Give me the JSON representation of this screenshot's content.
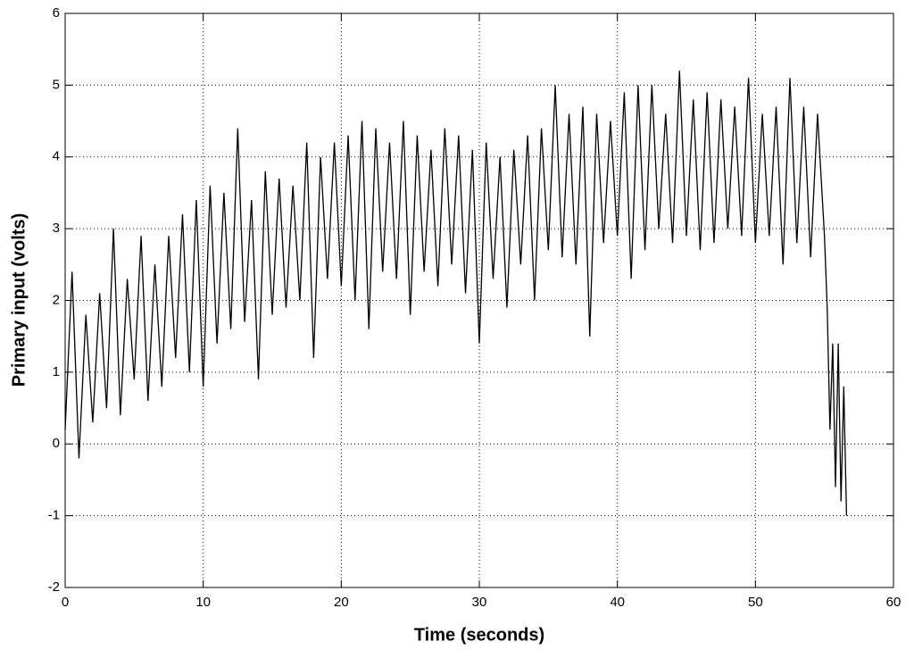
{
  "chart_data": {
    "type": "line",
    "xlabel": "Time (seconds)",
    "ylabel": "Primary input (volts)",
    "xlim": [
      0,
      60
    ],
    "xticks": [
      0,
      10,
      20,
      30,
      40,
      50,
      60
    ],
    "ylim": [
      -2,
      6
    ],
    "yticks": [
      -2,
      -1,
      0,
      1,
      2,
      3,
      4,
      5,
      6
    ],
    "grid": true,
    "x": [
      0,
      0.5,
      1,
      1.5,
      2,
      2.5,
      3,
      3.5,
      4,
      4.5,
      5,
      5.5,
      6,
      6.5,
      7,
      7.5,
      8,
      8.5,
      9,
      9.5,
      10,
      10.5,
      11,
      11.5,
      12,
      12.5,
      13,
      13.5,
      14,
      14.5,
      15,
      15.5,
      16,
      16.5,
      17,
      17.5,
      18,
      18.5,
      19,
      19.5,
      20,
      20.5,
      21,
      21.5,
      22,
      22.5,
      23,
      23.5,
      24,
      24.5,
      25,
      25.5,
      26,
      26.5,
      27,
      27.5,
      28,
      28.5,
      29,
      29.5,
      30,
      30.5,
      31,
      31.5,
      32,
      32.5,
      33,
      33.5,
      34,
      34.5,
      35,
      35.5,
      36,
      36.5,
      37,
      37.5,
      38,
      38.5,
      39,
      39.5,
      40,
      40.5,
      41,
      41.5,
      42,
      42.5,
      43,
      43.5,
      44,
      44.5,
      45,
      45.5,
      46,
      46.5,
      47,
      47.5,
      48,
      48.5,
      49,
      49.5,
      50,
      50.5,
      51,
      51.5,
      52,
      52.5,
      53,
      53.5,
      54,
      54.5,
      55,
      55.2,
      55.4,
      55.6,
      55.8,
      56,
      56.2,
      56.4,
      56.6
    ],
    "series": [
      {
        "color": "#000000",
        "values": [
          0.2,
          2.4,
          -0.2,
          1.8,
          0.3,
          2.1,
          0.5,
          3.0,
          0.4,
          2.3,
          0.9,
          2.9,
          0.6,
          2.5,
          0.8,
          2.9,
          1.2,
          3.2,
          1.0,
          3.4,
          0.8,
          3.6,
          1.4,
          3.5,
          1.6,
          4.4,
          1.7,
          3.4,
          0.9,
          3.8,
          1.8,
          3.7,
          1.9,
          3.6,
          2.0,
          4.2,
          1.2,
          4.0,
          2.3,
          4.2,
          2.2,
          4.3,
          2.0,
          4.5,
          1.6,
          4.4,
          2.4,
          4.2,
          2.3,
          4.5,
          1.8,
          4.3,
          2.4,
          4.1,
          2.2,
          4.4,
          2.5,
          4.3,
          2.1,
          4.1,
          1.4,
          4.2,
          2.3,
          4.0,
          1.9,
          4.1,
          2.5,
          4.3,
          2.0,
          4.4,
          2.7,
          5.0,
          2.6,
          4.6,
          2.5,
          4.7,
          1.5,
          4.6,
          2.8,
          4.5,
          2.9,
          4.9,
          2.3,
          5.0,
          2.7,
          5.0,
          3.0,
          4.6,
          2.8,
          5.2,
          2.9,
          4.8,
          2.7,
          4.9,
          2.8,
          4.8,
          3.0,
          4.7,
          2.9,
          5.1,
          2.8,
          4.6,
          2.9,
          4.7,
          2.5,
          5.1,
          2.8,
          4.7,
          2.6,
          4.6,
          2.9,
          1.9,
          0.2,
          1.4,
          -0.6,
          1.4,
          -0.8,
          0.8,
          -1.0
        ]
      }
    ]
  }
}
